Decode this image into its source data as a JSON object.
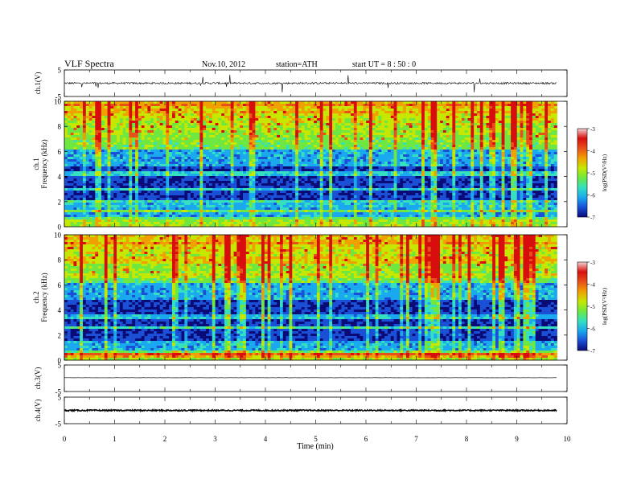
{
  "header": {
    "title": "VLF  Spectra",
    "date": "Nov.10, 2012",
    "station": "station=ATH",
    "start_ut": "start  UT  =   8  : 50 : 0"
  },
  "chart_data": [
    {
      "type": "line",
      "panel": "ch1-waveform",
      "ylabel": "ch.1(V)",
      "ylim": [
        -5,
        5
      ],
      "yticks": [
        "5",
        "-5"
      ],
      "xlim": [
        0,
        10
      ],
      "series": [
        {
          "baseline": 0,
          "noise_amplitude": 0.35,
          "spike_amplitude": 3.5,
          "end_x": 9.8
        }
      ]
    },
    {
      "type": "heatmap",
      "panel": "ch1-spectrogram",
      "ylabel": "Frequency (kHz)",
      "channel_label": "ch.1",
      "ylim": [
        0,
        10
      ],
      "yticks": [
        "0",
        "2",
        "4",
        "6",
        "8",
        "10"
      ],
      "xlim": [
        0,
        10
      ],
      "data_end_min": 9.8,
      "colorbar": {
        "label": "log(PSD(V²/Hz)",
        "range": [
          -7,
          -3
        ],
        "ticks": [
          "-3",
          "-4",
          "-5",
          "-6",
          "-7"
        ]
      }
    },
    {
      "type": "heatmap",
      "panel": "ch2-spectrogram",
      "ylabel": "Frequency (kHz)",
      "channel_label": "ch.2",
      "ylim": [
        0,
        10
      ],
      "yticks": [
        "0",
        "2",
        "4",
        "6",
        "8",
        "10"
      ],
      "xlim": [
        0,
        10
      ],
      "data_end_min": 9.8,
      "colorbar": {
        "label": "log(PSD(V²/Hz)",
        "range": [
          -7,
          -3
        ],
        "ticks": [
          "-3",
          "-4",
          "-5",
          "-6",
          "-7"
        ]
      }
    },
    {
      "type": "line",
      "panel": "ch3-waveform",
      "ylabel": "ch.3(V)",
      "ylim": [
        -5,
        5
      ],
      "yticks": [
        "5",
        "-5"
      ],
      "xlim": [
        0,
        10
      ],
      "series": [
        {
          "baseline": 0.2,
          "noise_amplitude": 0.03,
          "end_x": 9.8
        }
      ]
    },
    {
      "type": "line",
      "panel": "ch4-waveform",
      "ylabel": "ch.4(V)",
      "ylim": [
        -5,
        5
      ],
      "yticks": [
        "5",
        "-5"
      ],
      "xlim": [
        0,
        10
      ],
      "series": [
        {
          "baseline": 0,
          "noise_amplitude": 0.25,
          "end_x": 9.8
        }
      ]
    }
  ],
  "xaxis": {
    "label": "Time  (min)",
    "ticks": [
      "0",
      "1",
      "2",
      "3",
      "4",
      "5",
      "6",
      "7",
      "8",
      "9",
      "10"
    ]
  },
  "colors": {
    "trace": "#000000",
    "colormap": [
      "#0b0b78",
      "#1a4fd6",
      "#1aa9ee",
      "#34e0c0",
      "#6ee840",
      "#c6e800",
      "#f0a000",
      "#e8501a",
      "#d80e0e",
      "#f4d4d4"
    ]
  }
}
